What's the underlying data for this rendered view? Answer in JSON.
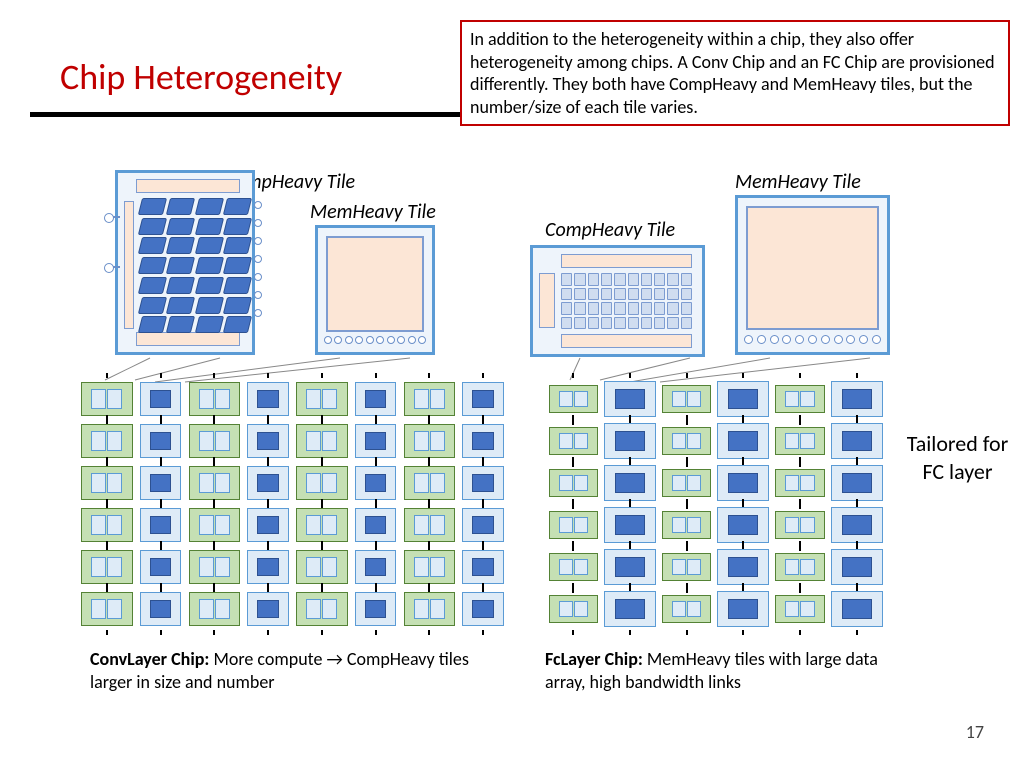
{
  "title": "Chip Heterogeneity",
  "note": "In addition to the heterogeneity within a chip, they also offer heterogeneity among chips.  A Conv Chip and an FC Chip are provisioned differently.  They both have CompHeavy and MemHeavy tiles, but the number/size of each tile varies.",
  "side_label": "Tailored for FC layer",
  "page_number": "17",
  "tile_labels": {
    "comp_conv": "CompHeavy Tile",
    "mem_conv": "MemHeavy Tile",
    "comp_fc": "CompHeavy Tile",
    "mem_fc": "MemHeavy Tile"
  },
  "conv_caption_bold": "ConvLayer Chip:",
  "conv_caption_rest": " More compute → CompHeavy tiles larger in size and number",
  "fc_caption_bold": "FcLayer Chip:",
  "fc_caption_rest": " MemHeavy tiles with large data array, high bandwidth links",
  "colors": {
    "title": "#c00000",
    "note_border": "#c00000",
    "tile_border": "#5b9bd5",
    "tile_bg": "#eef4fb",
    "plate": "#fce6d6",
    "plate_border": "#7d9cd1",
    "darkblue_cell": "#4472c4",
    "lightblue_cell": "#d0ddf0",
    "comp_chip": "#c5e0b4",
    "comp_chip_border": "#548235",
    "mem_chip": "#deebf7",
    "mem_chip_border": "#5b9bd5"
  },
  "chips": {
    "conv": {
      "rows": 6,
      "cols": 8,
      "pattern_note": "columns alternate comp,mem starting with comp"
    },
    "fc": {
      "rows": 6,
      "cols": 6,
      "pattern_note": "columns alternate comp,mem starting with comp"
    }
  },
  "tile_internals": {
    "comp_conv_grid": {
      "rows": 7,
      "cols": 4
    },
    "comp_fc_grid": {
      "rows": 4,
      "cols": 10
    },
    "mem_conv_dots": 10,
    "mem_fc_dots": 11,
    "comp_conv_right_circles": 7
  }
}
